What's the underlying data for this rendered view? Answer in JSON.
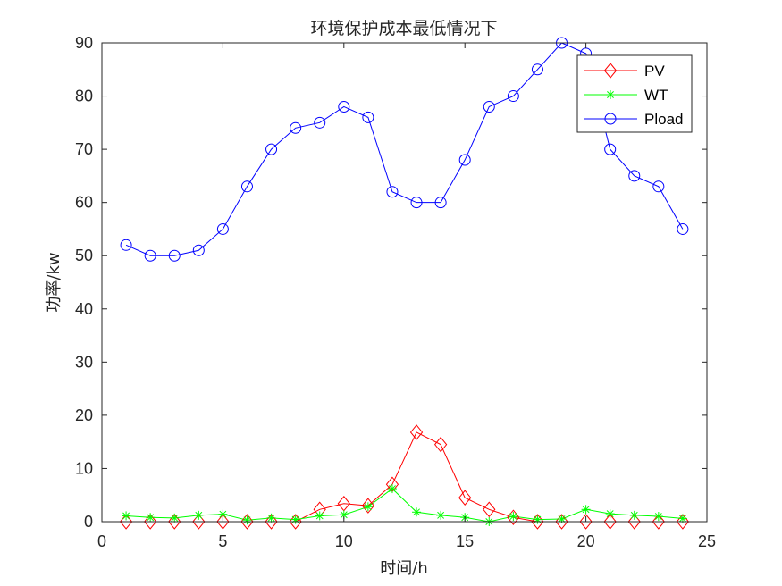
{
  "chart_data": {
    "type": "line",
    "title": "环境保护成本最低情况下",
    "xlabel": "时间/h",
    "ylabel": "功率/kw",
    "xlim": [
      0,
      25
    ],
    "ylim": [
      0,
      90
    ],
    "xticks": [
      "0",
      "5",
      "10",
      "15",
      "20",
      "25"
    ],
    "yticks": [
      "0",
      "10",
      "20",
      "30",
      "40",
      "50",
      "60",
      "70",
      "80",
      "90"
    ],
    "grid": false,
    "legend_position": "top-right",
    "x": [
      1,
      2,
      3,
      4,
      5,
      6,
      7,
      8,
      9,
      10,
      11,
      12,
      13,
      14,
      15,
      16,
      17,
      18,
      19,
      20,
      21,
      22,
      23,
      24
    ],
    "series": [
      {
        "name": "PV",
        "color": "#ff0000",
        "marker": "diamond",
        "values": [
          0,
          0,
          0,
          0,
          0,
          0,
          0,
          0,
          2.3,
          3.4,
          3.0,
          7.0,
          16.8,
          14.5,
          4.5,
          2.3,
          0.8,
          0,
          0,
          0,
          0,
          0,
          0,
          0
        ]
      },
      {
        "name": "WT",
        "color": "#00ff00",
        "marker": "asterisk",
        "values": [
          1.1,
          0.8,
          0.7,
          1.2,
          1.4,
          0.3,
          0.7,
          0.4,
          1.1,
          1.3,
          2.8,
          6.2,
          1.8,
          1.2,
          0.8,
          0,
          1.0,
          0.4,
          0.5,
          2.3,
          1.5,
          1.2,
          1.0,
          0.6
        ]
      },
      {
        "name": "Pload",
        "color": "#0000ff",
        "marker": "circle",
        "values": [
          52,
          50,
          50,
          51,
          55,
          63,
          70,
          74,
          75,
          78,
          76,
          62,
          60,
          60,
          68,
          78,
          80,
          85,
          90,
          88,
          70,
          65,
          63,
          55
        ]
      }
    ]
  }
}
